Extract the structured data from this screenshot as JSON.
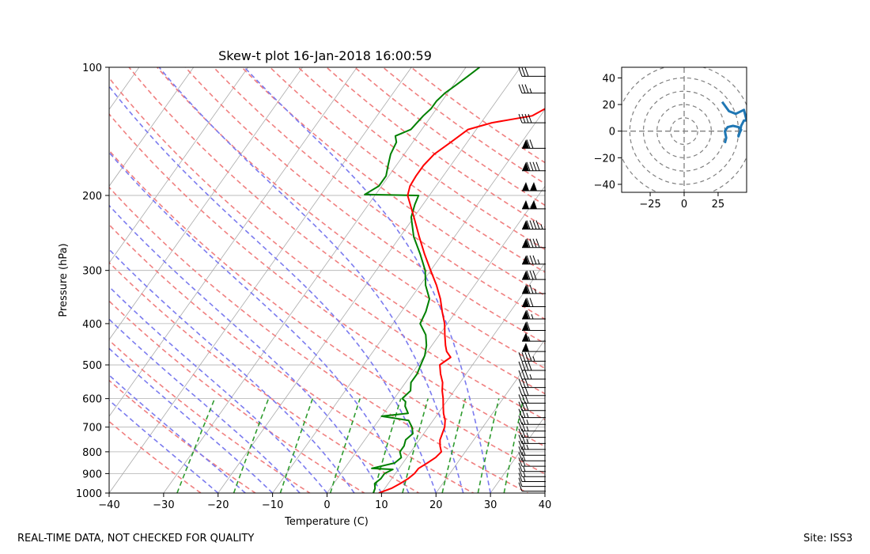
{
  "page": {
    "footer_left": "REAL-TIME DATA, NOT CHECKED FOR QUALITY",
    "footer_right": "Site: ISS3"
  },
  "colors": {
    "temperature": "#ff0000",
    "dewpoint": "#008000",
    "dry_adiabat": "#f08080",
    "moist_adiabat": "#7b7bef",
    "mixing_ratio": "#2e9b2e",
    "isotherm": "#aaaaaa",
    "isobar": "#b0b0b0",
    "hodograph": "#1f77b4",
    "hodo_rings": "#808080"
  },
  "chart_data": [
    {
      "type": "skewt",
      "title": "Skew-t plot 16-Jan-2018 16:00:59",
      "xlabel": "Temperature (C)",
      "ylabel": "Pressure (hPa)",
      "xlim": [
        -40,
        40
      ],
      "ylim": [
        1000,
        100
      ],
      "y_scale": "log",
      "xticks": [
        -40,
        -30,
        -20,
        -10,
        0,
        10,
        20,
        30,
        40
      ],
      "yticks": [
        1000,
        900,
        800,
        700,
        600,
        500,
        400,
        300,
        200,
        100
      ],
      "grid": true,
      "temperature": [
        [
          1000,
          9.5
        ],
        [
          975,
          11.2
        ],
        [
          950,
          12.2
        ],
        [
          925,
          13.0
        ],
        [
          900,
          13.5
        ],
        [
          875,
          13.6
        ],
        [
          850,
          14.5
        ],
        [
          825,
          15.3
        ],
        [
          800,
          15.6
        ],
        [
          775,
          14.6
        ],
        [
          750,
          13.8
        ],
        [
          725,
          13.4
        ],
        [
          700,
          13.0
        ],
        [
          675,
          12.2
        ],
        [
          650,
          11.0
        ],
        [
          625,
          10.0
        ],
        [
          600,
          9.0
        ],
        [
          575,
          7.8
        ],
        [
          550,
          6.8
        ],
        [
          525,
          5.3
        ],
        [
          500,
          4.0
        ],
        [
          480,
          5.0
        ],
        [
          465,
          3.5
        ],
        [
          450,
          2.5
        ],
        [
          425,
          1.0
        ],
        [
          400,
          -0.5
        ],
        [
          375,
          -2.5
        ],
        [
          350,
          -4.5
        ],
        [
          325,
          -7.0
        ],
        [
          300,
          -10.0
        ],
        [
          275,
          -13.2
        ],
        [
          250,
          -16.5
        ],
        [
          225,
          -20.0
        ],
        [
          200,
          -24.0
        ],
        [
          190,
          -24.8
        ],
        [
          180,
          -25.0
        ],
        [
          170,
          -25.0
        ],
        [
          160,
          -24.5
        ],
        [
          150,
          -23.0
        ],
        [
          140,
          -21.5
        ],
        [
          135,
          -18.0
        ],
        [
          130,
          -11.5
        ],
        [
          125,
          -10.0
        ],
        [
          120,
          -10.2
        ],
        [
          115,
          -10.5
        ],
        [
          110,
          -8.5
        ],
        [
          105,
          -7.0
        ],
        [
          100,
          -5.0
        ]
      ],
      "dewpoint": [
        [
          1000,
          8.5
        ],
        [
          975,
          8.2
        ],
        [
          950,
          7.5
        ],
        [
          925,
          8.0
        ],
        [
          900,
          8.0
        ],
        [
          880,
          9.0
        ],
        [
          875,
          5.0
        ],
        [
          850,
          8.5
        ],
        [
          825,
          9.0
        ],
        [
          800,
          8.0
        ],
        [
          775,
          8.0
        ],
        [
          750,
          7.5
        ],
        [
          725,
          8.0
        ],
        [
          700,
          7.0
        ],
        [
          675,
          5.5
        ],
        [
          660,
          0.0
        ],
        [
          650,
          4.5
        ],
        [
          625,
          3.0
        ],
        [
          610,
          2.5
        ],
        [
          600,
          1.5
        ],
        [
          575,
          2.0
        ],
        [
          550,
          1.0
        ],
        [
          525,
          1.0
        ],
        [
          500,
          0.5
        ],
        [
          475,
          0.0
        ],
        [
          450,
          -1.0
        ],
        [
          425,
          -2.5
        ],
        [
          400,
          -5.0
        ],
        [
          375,
          -5.5
        ],
        [
          350,
          -6.5
        ],
        [
          325,
          -9.0
        ],
        [
          300,
          -11.0
        ],
        [
          275,
          -14.0
        ],
        [
          250,
          -17.5
        ],
        [
          225,
          -20.5
        ],
        [
          210,
          -21.5
        ],
        [
          200,
          -22.0
        ],
        [
          199,
          -32.0
        ],
        [
          190,
          -30.5
        ],
        [
          180,
          -30.5
        ],
        [
          170,
          -31.5
        ],
        [
          160,
          -32.5
        ],
        [
          150,
          -33.0
        ],
        [
          145,
          -34.0
        ],
        [
          140,
          -32.0
        ],
        [
          130,
          -31.5
        ],
        [
          125,
          -31.0
        ],
        [
          120,
          -31.0
        ],
        [
          115,
          -30.5
        ],
        [
          110,
          -29.5
        ],
        [
          105,
          -28.5
        ],
        [
          100,
          -27.5
        ]
      ],
      "dry_adiabats_K": [
        250,
        260,
        270,
        280,
        290,
        300,
        310,
        320,
        330,
        340,
        350,
        360,
        370,
        380,
        390,
        400,
        410,
        420,
        430,
        440,
        450
      ],
      "moist_adiabats_C": [
        -20,
        -15,
        -10,
        -5,
        0,
        5,
        10,
        15,
        20,
        25,
        30
      ],
      "mixing_ratios_gkg": [
        0.4,
        1,
        2,
        4,
        7,
        10,
        16,
        24,
        32
      ],
      "wind_barbs": [
        {
          "p": 990,
          "spd": 12,
          "dir": 290
        },
        {
          "p": 965,
          "spd": 14,
          "dir": 285
        },
        {
          "p": 940,
          "spd": 15,
          "dir": 280
        },
        {
          "p": 915,
          "spd": 16,
          "dir": 275
        },
        {
          "p": 890,
          "spd": 18,
          "dir": 275
        },
        {
          "p": 865,
          "spd": 20,
          "dir": 275
        },
        {
          "p": 840,
          "spd": 22,
          "dir": 270
        },
        {
          "p": 815,
          "spd": 24,
          "dir": 270
        },
        {
          "p": 790,
          "spd": 25,
          "dir": 270
        },
        {
          "p": 765,
          "spd": 26,
          "dir": 270
        },
        {
          "p": 740,
          "spd": 27,
          "dir": 270
        },
        {
          "p": 715,
          "spd": 28,
          "dir": 270
        },
        {
          "p": 690,
          "spd": 28,
          "dir": 270
        },
        {
          "p": 665,
          "spd": 29,
          "dir": 270
        },
        {
          "p": 640,
          "spd": 30,
          "dir": 270
        },
        {
          "p": 615,
          "spd": 30,
          "dir": 270
        },
        {
          "p": 590,
          "spd": 32,
          "dir": 270
        },
        {
          "p": 565,
          "spd": 34,
          "dir": 270
        },
        {
          "p": 540,
          "spd": 36,
          "dir": 270
        },
        {
          "p": 515,
          "spd": 40,
          "dir": 270
        },
        {
          "p": 490,
          "spd": 45,
          "dir": 270
        },
        {
          "p": 465,
          "spd": 50,
          "dir": 270
        },
        {
          "p": 440,
          "spd": 55,
          "dir": 270
        },
        {
          "p": 415,
          "spd": 60,
          "dir": 270
        },
        {
          "p": 390,
          "spd": 65,
          "dir": 270
        },
        {
          "p": 365,
          "spd": 70,
          "dir": 270
        },
        {
          "p": 340,
          "spd": 75,
          "dir": 270
        },
        {
          "p": 315,
          "spd": 80,
          "dir": 270
        },
        {
          "p": 290,
          "spd": 85,
          "dir": 270
        },
        {
          "p": 265,
          "spd": 90,
          "dir": 270
        },
        {
          "p": 240,
          "spd": 95,
          "dir": 270
        },
        {
          "p": 215,
          "spd": 100,
          "dir": 270
        },
        {
          "p": 195,
          "spd": 100,
          "dir": 270
        },
        {
          "p": 175,
          "spd": 90,
          "dir": 270
        },
        {
          "p": 155,
          "spd": 70,
          "dir": 270
        },
        {
          "p": 135,
          "spd": 40,
          "dir": 270
        },
        {
          "p": 115,
          "spd": 35,
          "dir": 270
        },
        {
          "p": 105,
          "spd": 30,
          "dir": 270
        }
      ]
    },
    {
      "type": "line",
      "xlim": [
        -46,
        46
      ],
      "ylim": [
        -46,
        48
      ],
      "xticks": [
        -25,
        0,
        25
      ],
      "yticks": [
        -40,
        -20,
        0,
        20,
        40
      ],
      "rings": [
        10,
        20,
        30,
        40,
        50
      ],
      "series": [
        {
          "values": [
            [
              30,
              -9
            ],
            [
              31,
              -5
            ],
            [
              30,
              0
            ],
            [
              32,
              3
            ],
            [
              36,
              4
            ],
            [
              40,
              3
            ],
            [
              42,
              1
            ],
            [
              40,
              -3
            ],
            [
              40,
              -4
            ],
            [
              41,
              -1
            ],
            [
              42,
              4
            ],
            [
              44,
              8
            ],
            [
              46,
              8
            ],
            [
              44,
              16
            ],
            [
              38,
              13
            ],
            [
              33,
              15
            ],
            [
              28,
              22
            ]
          ]
        }
      ]
    }
  ]
}
